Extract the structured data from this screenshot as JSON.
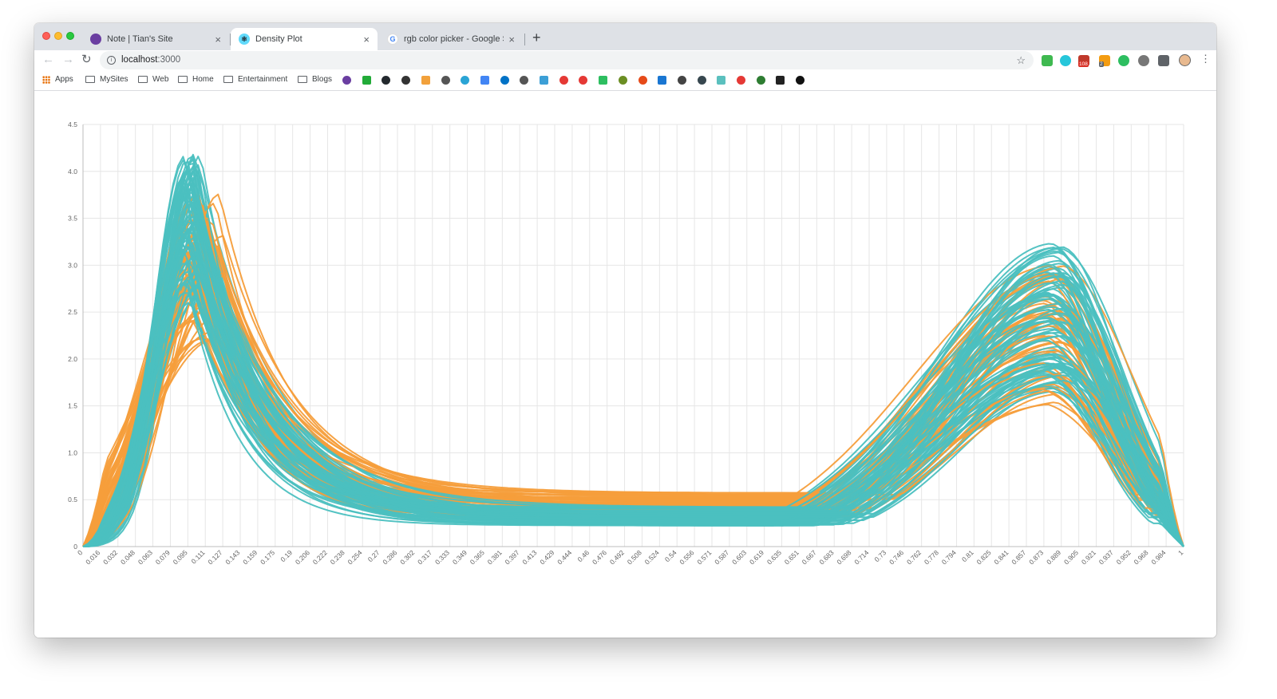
{
  "browser": {
    "tabs": [
      {
        "title": "Note | Tian's Site",
        "close": "×",
        "active": false
      },
      {
        "title": "Density Plot",
        "close": "×",
        "active": true
      },
      {
        "title": "rgb color picker - Google Search",
        "close": "×",
        "active": false
      }
    ],
    "new_tab": "+",
    "nav": {
      "back": "←",
      "forward": "→",
      "reload": "↻"
    },
    "url": {
      "host": "localhost",
      "port": ":3000"
    },
    "bookmark_star": "☆",
    "menu": "⋮",
    "bookmarks": [
      {
        "label": "Apps",
        "icon": "apps-grid-icon"
      },
      {
        "label": "MySites",
        "icon": "folder-icon"
      },
      {
        "label": "Web",
        "icon": "folder-icon"
      },
      {
        "label": "Home",
        "icon": "folder-icon"
      },
      {
        "label": "Entertainment",
        "icon": "folder-icon"
      },
      {
        "label": "Blogs",
        "icon": "folder-icon"
      }
    ],
    "bookmark_icon_colors": [
      "#6a3ea1",
      "#22ab38",
      "#24292e",
      "#333333",
      "#f2a13b",
      "#555555",
      "#2aa4d5",
      "#4285f4",
      "#0072c6",
      "#555555",
      "#3c9fd6",
      "#e53935",
      "#e53935",
      "#2dbe60",
      "#6b8e23",
      "#e64a19",
      "#1976d2",
      "#444444",
      "#37474f",
      "#5bc0be",
      "#e53935",
      "#2e7d32",
      "#222222",
      "#111111"
    ],
    "extension_colors": [
      "#3fb950",
      "#26c6da",
      "#c0392b",
      "#f39c12",
      "#2dbe60",
      "#777777",
      "#5f6368"
    ],
    "extension_badges": [
      "108",
      "2"
    ]
  },
  "chart_data": {
    "type": "line",
    "title": "",
    "xlabel": "",
    "ylabel": "",
    "ylim": [
      0,
      4.5
    ],
    "grid": true,
    "legend": "none",
    "y_ticks": [
      "0",
      "0.5",
      "1.0",
      "1.5",
      "2.0",
      "2.5",
      "3.0",
      "3.5",
      "4.0",
      "4.5"
    ],
    "categories": [
      "0",
      "0.016",
      "0.032",
      "0.048",
      "0.063",
      "0.079",
      "0.095",
      "0.111",
      "0.127",
      "0.143",
      "0.159",
      "0.175",
      "0.19",
      "0.206",
      "0.222",
      "0.238",
      "0.254",
      "0.27",
      "0.286",
      "0.302",
      "0.317",
      "0.333",
      "0.349",
      "0.365",
      "0.381",
      "0.397",
      "0.413",
      "0.429",
      "0.444",
      "0.46",
      "0.476",
      "0.492",
      "0.508",
      "0.524",
      "0.54",
      "0.556",
      "0.571",
      "0.587",
      "0.603",
      "0.619",
      "0.635",
      "0.651",
      "0.667",
      "0.683",
      "0.698",
      "0.714",
      "0.73",
      "0.746",
      "0.762",
      "0.778",
      "0.794",
      "0.81",
      "0.825",
      "0.841",
      "0.857",
      "0.873",
      "0.889",
      "0.905",
      "0.921",
      "0.937",
      "0.952",
      "0.968",
      "0.984",
      "1"
    ],
    "series_groups": [
      {
        "color": "#4bc0c0",
        "count": 50,
        "peak1": {
          "x": [
            0.092,
            0.108
          ],
          "height": [
            2.6,
            4.2
          ],
          "width": [
            0.026,
            0.038
          ]
        },
        "peak2": {
          "x": [
            0.875,
            0.892
          ],
          "height": [
            1.5,
            3.03
          ]
        },
        "trough": [
          0.22,
          0.42
        ]
      },
      {
        "color": "#f59e3b",
        "count": 45,
        "peak1": {
          "x": [
            0.1,
            0.128
          ],
          "height": [
            2.2,
            3.9
          ],
          "width": [
            0.032,
            0.06
          ]
        },
        "peak2": {
          "x": [
            0.872,
            0.892
          ],
          "height": [
            1.22,
            2.75
          ]
        },
        "trough": [
          0.32,
          0.58
        ]
      }
    ]
  }
}
